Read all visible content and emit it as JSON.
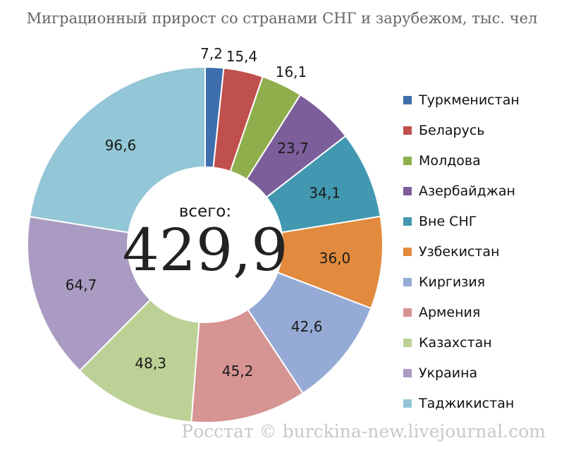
{
  "chart_data": {
    "type": "pie",
    "title": "Миграционный прирост со странами СНГ и зарубежом, тыс. чел",
    "center_caption": "всего:",
    "total_label": "429,9",
    "total": 429.9,
    "legend_position": "right",
    "slices": [
      {
        "name": "Туркменистан",
        "value": 7.2,
        "label": "7,2",
        "color": "#3f6eac"
      },
      {
        "name": "Беларусь",
        "value": 15.4,
        "label": "15,4",
        "color": "#c0504d"
      },
      {
        "name": "Молдова",
        "value": 16.1,
        "label": "16,1",
        "color": "#8faf4d"
      },
      {
        "name": "Азербайджан",
        "value": 23.7,
        "label": "23,7",
        "color": "#7b5e9a"
      },
      {
        "name": "Вне СНГ",
        "value": 34.1,
        "label": "34,1",
        "color": "#4298b0"
      },
      {
        "name": "Узбекистан",
        "value": 36.0,
        "label": "36,0",
        "color": "#e28a3d"
      },
      {
        "name": "Киргизия",
        "value": 42.6,
        "label": "42,6",
        "color": "#95abd6"
      },
      {
        "name": "Армения",
        "value": 45.2,
        "label": "45,2",
        "color": "#d69493"
      },
      {
        "name": "Казахстан",
        "value": 48.3,
        "label": "48,3",
        "color": "#bcd195"
      },
      {
        "name": "Украина",
        "value": 64.7,
        "label": "64,7",
        "color": "#a99bc1"
      },
      {
        "name": "Таджикистан",
        "value": 96.6,
        "label": "96,6",
        "color": "#93c6d6"
      }
    ]
  },
  "footer": "Росстат © burckina-new.livejournal.com"
}
